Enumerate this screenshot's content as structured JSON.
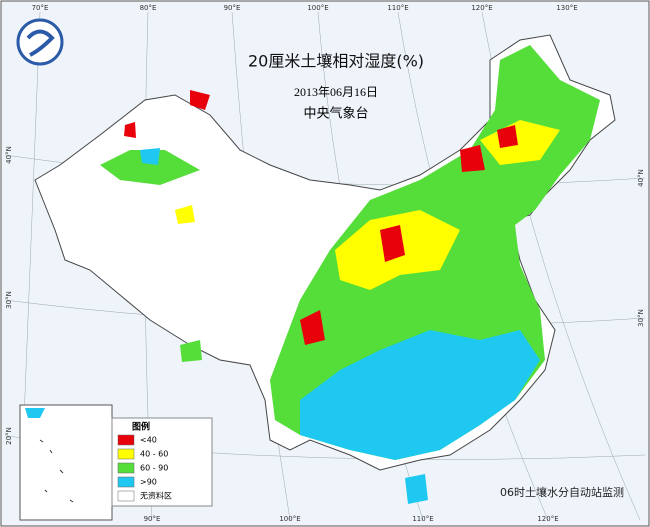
{
  "header": {
    "title": "20厘米土壤相对湿度(%)",
    "date": "2013年06月16日",
    "agency": "中央气象台"
  },
  "legend": {
    "title": "图例",
    "items": [
      {
        "label": "<40",
        "color": "#e8000b"
      },
      {
        "label": "40 - 60",
        "color": "#ffff00"
      },
      {
        "label": "60 - 90",
        "color": "#55dd3a"
      },
      {
        "label": ">90",
        "color": "#1ec8f0"
      },
      {
        "label": "无资料区",
        "color": "#ffffff"
      }
    ]
  },
  "footer": "06时土壤水分自动站监测",
  "top_longitudes": [
    "70°E",
    "80°E",
    "90°E",
    "100°E",
    "110°E",
    "120°E",
    "130°E"
  ],
  "bottom_longitudes": [
    "90°E",
    "100°E",
    "110°E",
    "120°E"
  ],
  "left_latitudes": [
    "40°N",
    "30°N",
    "20°N"
  ],
  "right_latitudes": [
    "40°N",
    "30°N"
  ]
}
